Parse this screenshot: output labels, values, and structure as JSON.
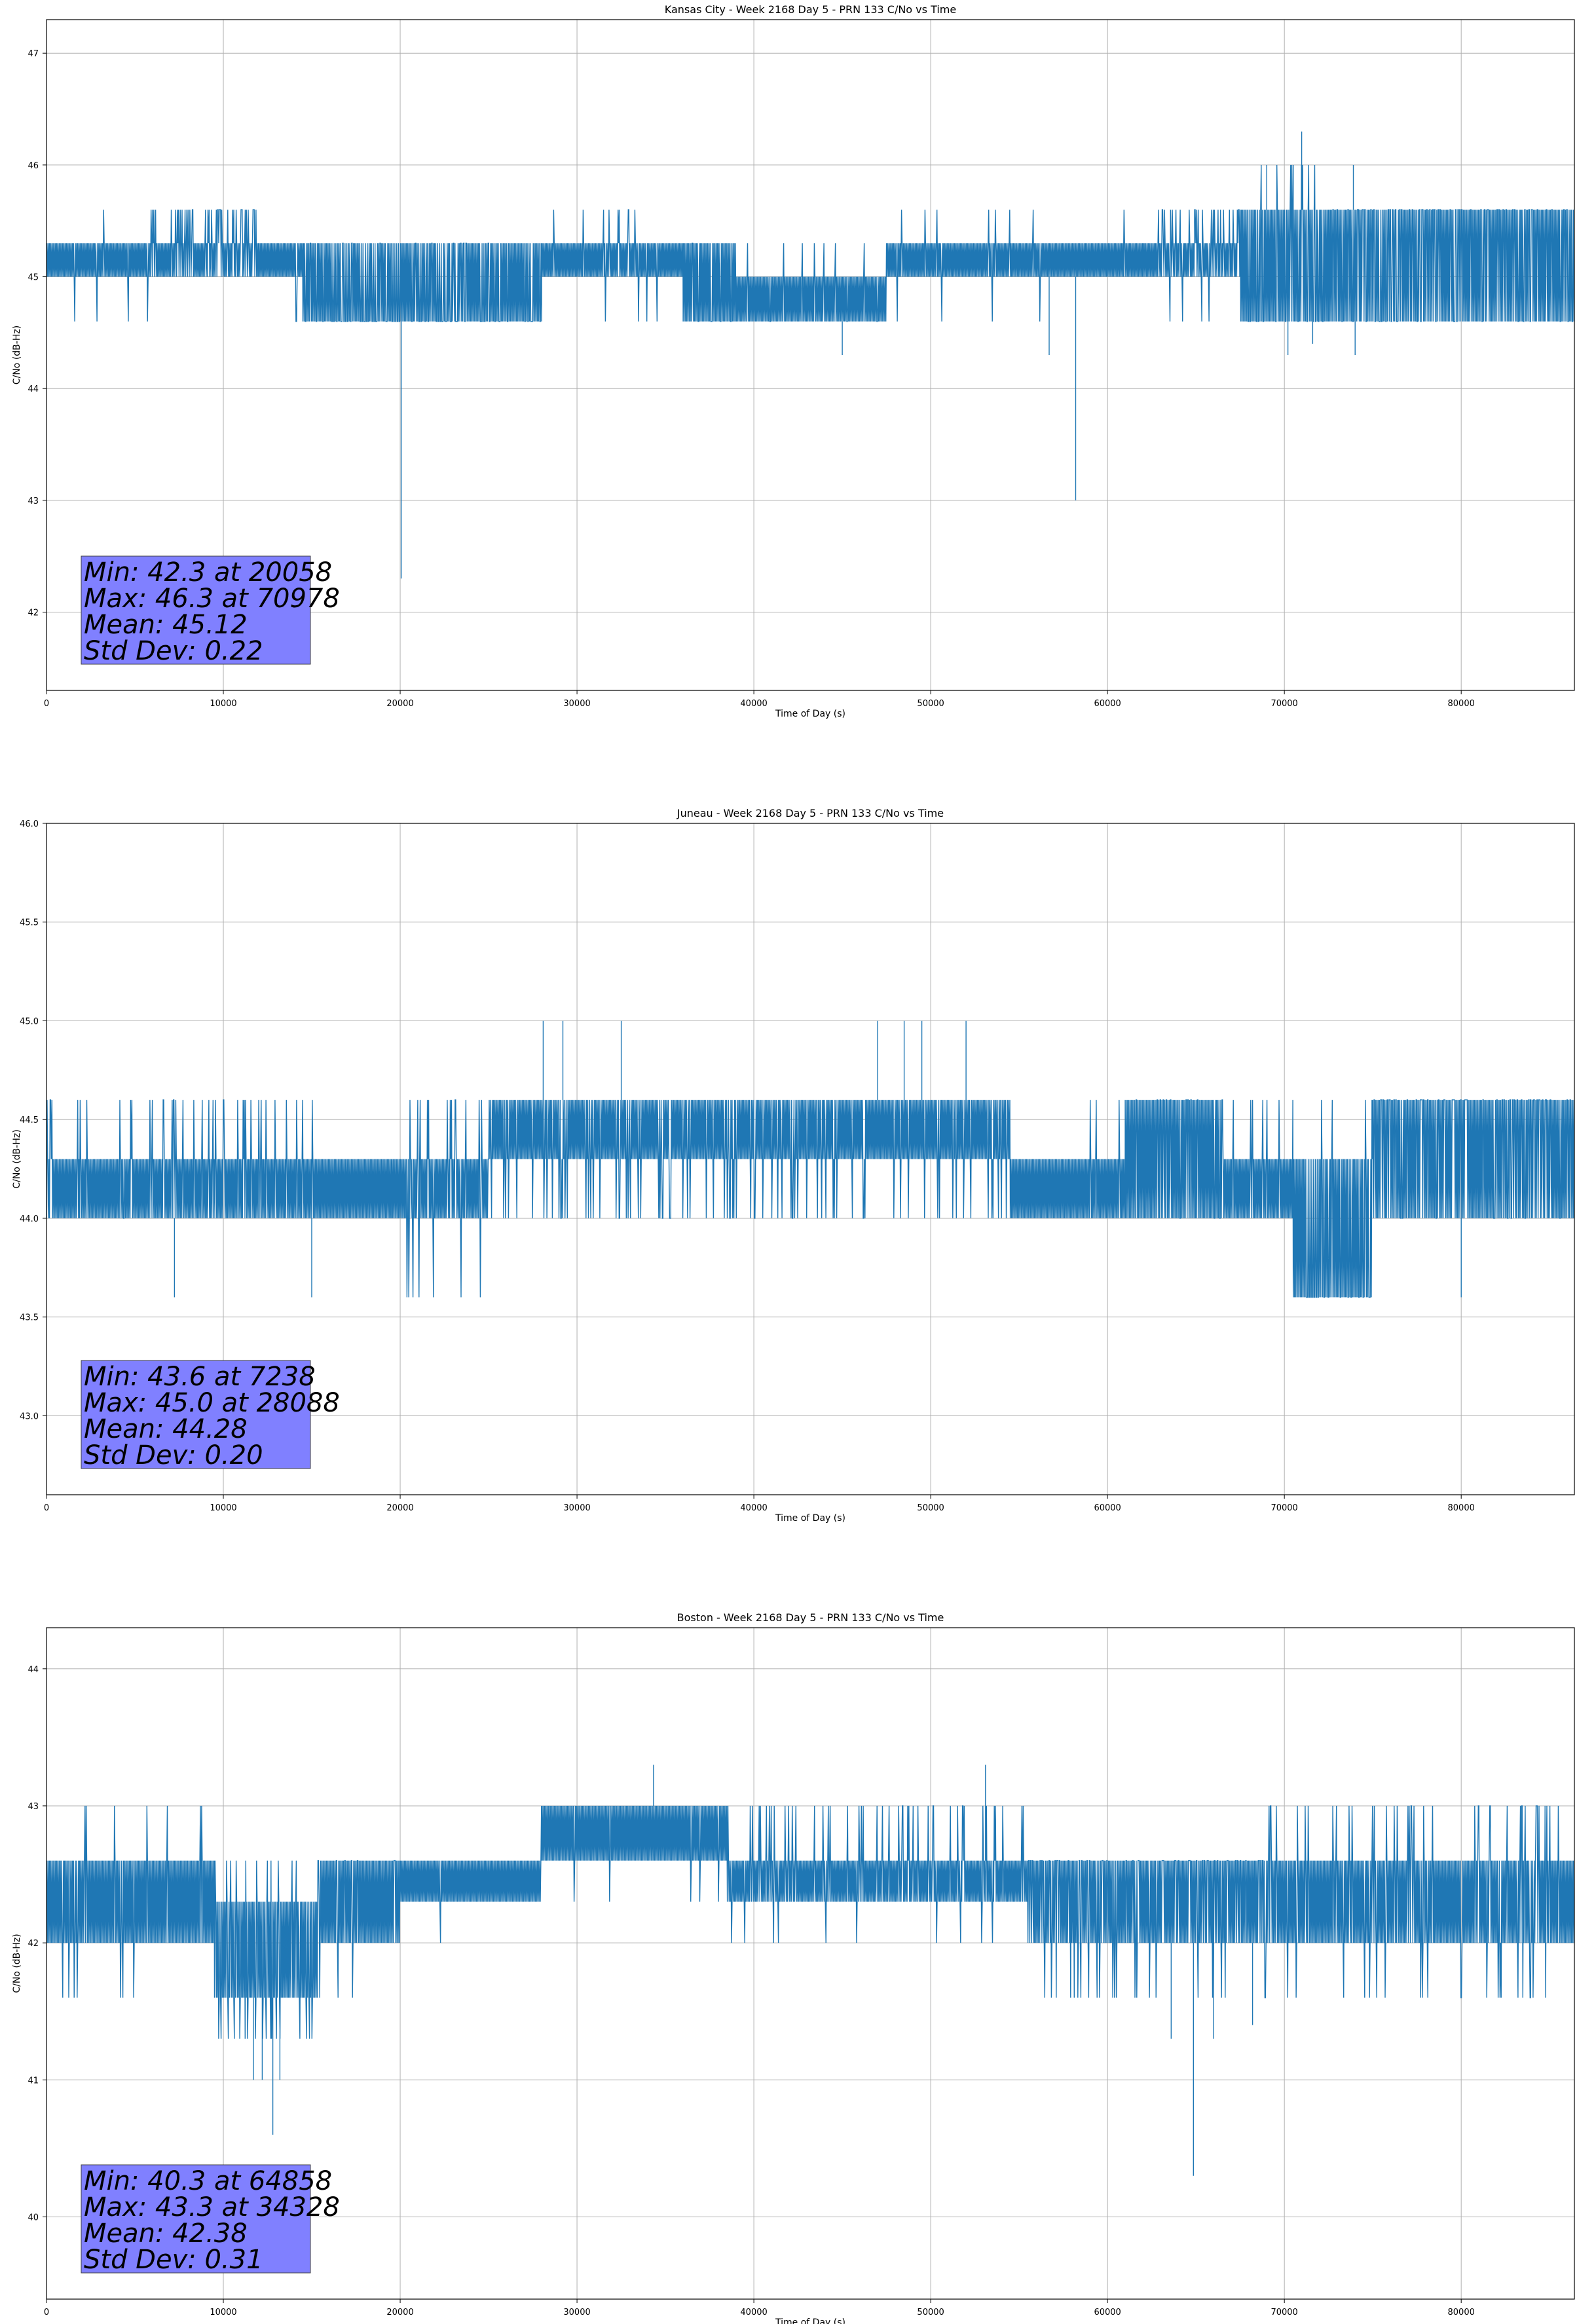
{
  "colors": {
    "series": "#1f77b4",
    "stats_box_fill": "#8080ff",
    "stats_box_edge": "#404040",
    "grid": "#b0b0b0"
  },
  "chart_data": [
    {
      "type": "line",
      "title": "Kansas City - Week 2168 Day 5 - PRN 133 C/No vs Time",
      "xlabel": "Time of Day (s)",
      "ylabel": "C/No (dB-Hz)",
      "xlim": [
        0,
        86400
      ],
      "ylim": [
        41.3,
        47.3
      ],
      "xticks": [
        0,
        10000,
        20000,
        30000,
        40000,
        50000,
        60000,
        70000,
        80000
      ],
      "yticks": [
        42,
        43,
        44,
        45,
        46,
        47
      ],
      "grid": true,
      "stats": [
        "Min: 42.3 at 20058",
        "Max: 46.3 at 70978",
        "Mean: 45.12",
        "Std Dev: 0.22"
      ],
      "segments": [
        {
          "x": [
            0,
            6000
          ],
          "base": [
            45.0,
            45.3
          ],
          "up": 45.6,
          "down": 44.6,
          "upRate": 0.03,
          "downRate": 0.02
        },
        {
          "x": [
            6000,
            12000
          ],
          "base": [
            45.0,
            45.3
          ],
          "up": 45.6,
          "down": 44.6,
          "upRate": 0.55,
          "downRate": 0.01
        },
        {
          "x": [
            12000,
            14500
          ],
          "base": [
            45.0,
            45.3
          ],
          "up": 45.6,
          "down": 44.6,
          "upRate": 0.08,
          "downRate": 0.03
        },
        {
          "x": [
            14500,
            28000
          ],
          "base": [
            44.6,
            45.3
          ],
          "up": 45.3,
          "down": 44.6,
          "upRate": 0.1,
          "downRate": 0.45
        },
        {
          "x": [
            28000,
            36000
          ],
          "base": [
            45.0,
            45.3
          ],
          "up": 45.6,
          "down": 44.6,
          "upRate": 0.12,
          "downRate": 0.03
        },
        {
          "x": [
            36000,
            39000
          ],
          "base": [
            44.6,
            45.3
          ],
          "up": 45.3,
          "down": 44.6,
          "upRate": 0.05,
          "downRate": 0.3
        },
        {
          "x": [
            39000,
            47500
          ],
          "base": [
            44.6,
            45.0
          ],
          "up": 45.3,
          "down": 44.6,
          "upRate": 0.05,
          "downRate": 0.05
        },
        {
          "x": [
            47500,
            62000
          ],
          "base": [
            45.0,
            45.3
          ],
          "up": 45.6,
          "down": 44.6,
          "upRate": 0.04,
          "downRate": 0.04
        },
        {
          "x": [
            62000,
            67500
          ],
          "base": [
            45.0,
            45.3
          ],
          "up": 45.6,
          "down": 44.6,
          "upRate": 0.4,
          "downRate": 0.15
        },
        {
          "x": [
            67500,
            72500
          ],
          "base": [
            44.6,
            45.6
          ],
          "up": 46.0,
          "down": 44.6,
          "upRate": 0.2,
          "downRate": 0.3
        },
        {
          "x": [
            72500,
            86400
          ],
          "base": [
            44.6,
            45.6
          ],
          "up": 45.6,
          "down": 44.6,
          "upRate": 0.4,
          "downRate": 0.3
        }
      ],
      "spikes": [
        [
          20058,
          42.3
        ],
        [
          58200,
          43.0
        ],
        [
          45000,
          44.3
        ],
        [
          56700,
          44.3
        ],
        [
          70200,
          44.3
        ],
        [
          71600,
          44.4
        ],
        [
          74000,
          44.3
        ],
        [
          70978,
          46.3
        ],
        [
          73900,
          46.0
        ],
        [
          69000,
          46.0
        ],
        [
          70500,
          46.0
        ]
      ]
    },
    {
      "type": "line",
      "title": "Juneau - Week 2168 Day 5 - PRN 133 C/No vs Time",
      "xlabel": "Time of Day (s)",
      "ylabel": "C/No (dB-Hz)",
      "xlim": [
        0,
        86400
      ],
      "ylim": [
        42.6,
        46.0
      ],
      "xticks": [
        0,
        10000,
        20000,
        30000,
        40000,
        50000,
        60000,
        70000,
        80000
      ],
      "yticks": [
        43.0,
        43.5,
        44.0,
        44.5,
        45.0,
        45.5,
        46.0
      ],
      "grid": true,
      "stats": [
        "Min: 43.6 at 7238",
        "Max: 45.0 at 28088",
        "Mean: 44.28",
        "Std Dev: 0.20"
      ],
      "segments": [
        {
          "x": [
            0,
            15500
          ],
          "base": [
            44.0,
            44.3
          ],
          "up": 44.6,
          "down": 44.0,
          "upRate": 0.3,
          "downRate": 0.01
        },
        {
          "x": [
            15500,
            19500
          ],
          "base": [
            44.0,
            44.3
          ],
          "up": 44.6,
          "down": 44.0,
          "upRate": 0.0,
          "downRate": 0.0
        },
        {
          "x": [
            19500,
            25000
          ],
          "base": [
            44.0,
            44.3
          ],
          "up": 44.6,
          "down": 43.6,
          "upRate": 0.15,
          "downRate": 0.15
        },
        {
          "x": [
            25000,
            54500
          ],
          "base": [
            44.3,
            44.6
          ],
          "up": 44.6,
          "down": 44.0,
          "upRate": 0.0,
          "downRate": 0.25
        },
        {
          "x": [
            54500,
            61000
          ],
          "base": [
            44.0,
            44.3
          ],
          "up": 44.6,
          "down": 44.0,
          "upRate": 0.08,
          "downRate": 0.0
        },
        {
          "x": [
            61000,
            66500
          ],
          "base": [
            44.0,
            44.6
          ],
          "up": 44.6,
          "down": 44.0,
          "upRate": 0.2,
          "downRate": 0.1
        },
        {
          "x": [
            66500,
            70500
          ],
          "base": [
            44.0,
            44.3
          ],
          "up": 44.6,
          "down": 44.0,
          "upRate": 0.15,
          "downRate": 0.0
        },
        {
          "x": [
            70500,
            75000
          ],
          "base": [
            43.6,
            44.3
          ],
          "up": 44.6,
          "down": 43.6,
          "upRate": 0.1,
          "downRate": 0.4
        },
        {
          "x": [
            75000,
            86400
          ],
          "base": [
            44.0,
            44.6
          ],
          "up": 44.6,
          "down": 44.0,
          "upRate": 0.35,
          "downRate": 0.05
        }
      ],
      "spikes": [
        [
          7238,
          43.6
        ],
        [
          15000,
          43.6
        ],
        [
          80000,
          43.6
        ],
        [
          28088,
          45.0
        ],
        [
          29200,
          45.0
        ],
        [
          32500,
          45.0
        ],
        [
          47000,
          45.0
        ],
        [
          48500,
          45.0
        ],
        [
          49500,
          45.0
        ],
        [
          52000,
          45.0
        ]
      ]
    },
    {
      "type": "line",
      "title": "Boston - Week 2168 Day 5 - PRN 133 C/No vs Time",
      "xlabel": "Time of Day (s)",
      "ylabel": "C/No (dB-Hz)",
      "xlim": [
        0,
        86400
      ],
      "ylim": [
        39.4,
        44.3
      ],
      "xticks": [
        0,
        10000,
        20000,
        30000,
        40000,
        50000,
        60000,
        70000,
        80000
      ],
      "yticks": [
        40,
        41,
        42,
        43,
        44
      ],
      "grid": true,
      "stats": [
        "Min: 40.3 at 64858",
        "Max: 43.3 at 34328",
        "Mean: 42.38",
        "Std Dev: 0.31"
      ],
      "segments": [
        {
          "x": [
            0,
            9500
          ],
          "base": [
            42.0,
            42.6
          ],
          "up": 43.0,
          "down": 41.6,
          "upRate": 0.05,
          "downRate": 0.05
        },
        {
          "x": [
            9500,
            15500
          ],
          "base": [
            41.6,
            42.3
          ],
          "up": 42.6,
          "down": 41.3,
          "upRate": 0.15,
          "downRate": 0.3
        },
        {
          "x": [
            15500,
            20000
          ],
          "base": [
            42.0,
            42.6
          ],
          "up": 42.6,
          "down": 41.6,
          "upRate": 0.2,
          "downRate": 0.05
        },
        {
          "x": [
            20000,
            28000
          ],
          "base": [
            42.3,
            42.6
          ],
          "up": 43.0,
          "down": 42.0,
          "upRate": 0.05,
          "downRate": 0.02
        },
        {
          "x": [
            28000,
            38500
          ],
          "base": [
            42.6,
            43.0
          ],
          "up": 43.0,
          "down": 42.3,
          "upRate": 0.0,
          "downRate": 0.05
        },
        {
          "x": [
            38500,
            55500
          ],
          "base": [
            42.3,
            42.6
          ],
          "up": 43.0,
          "down": 42.0,
          "upRate": 0.3,
          "downRate": 0.04
        },
        {
          "x": [
            55500,
            69000
          ],
          "base": [
            42.0,
            42.6
          ],
          "up": 42.6,
          "down": 41.6,
          "upRate": 0.3,
          "downRate": 0.2
        },
        {
          "x": [
            69000,
            86400
          ],
          "base": [
            42.0,
            42.6
          ],
          "up": 43.0,
          "down": 41.6,
          "upRate": 0.25,
          "downRate": 0.1
        }
      ],
      "spikes": [
        [
          64858,
          40.3
        ],
        [
          12800,
          40.6
        ],
        [
          11700,
          41.0
        ],
        [
          12200,
          41.0
        ],
        [
          13200,
          41.0
        ],
        [
          34328,
          43.3
        ],
        [
          53100,
          43.3
        ],
        [
          66000,
          41.3
        ],
        [
          63600,
          41.3
        ],
        [
          68200,
          41.4
        ]
      ]
    }
  ]
}
